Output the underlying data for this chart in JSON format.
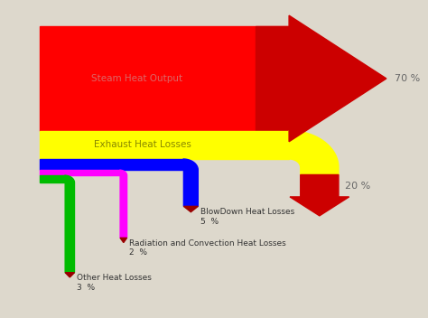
{
  "background_color": "#ddd8cc",
  "steam_color": "#ff0000",
  "arrow_color": "#cc0000",
  "dark_red": "#990000",
  "yellow_color": "#ffff00",
  "blue_color": "#0000ff",
  "magenta_color": "#ff00ff",
  "green_color": "#00bb00",
  "steam_label": "Steam Heat Output",
  "exhaust_label": "Exhaust Heat Losses",
  "blowdown_label": "BlowDown Heat Losses",
  "radiation_label": "Radiation and Convection Heat Losses",
  "other_label": "Other Heat Losses",
  "pct_70": "70 %",
  "pct_20": "20 %",
  "pct_5": "5  %",
  "pct_2": "2  %",
  "pct_3": "3  %"
}
